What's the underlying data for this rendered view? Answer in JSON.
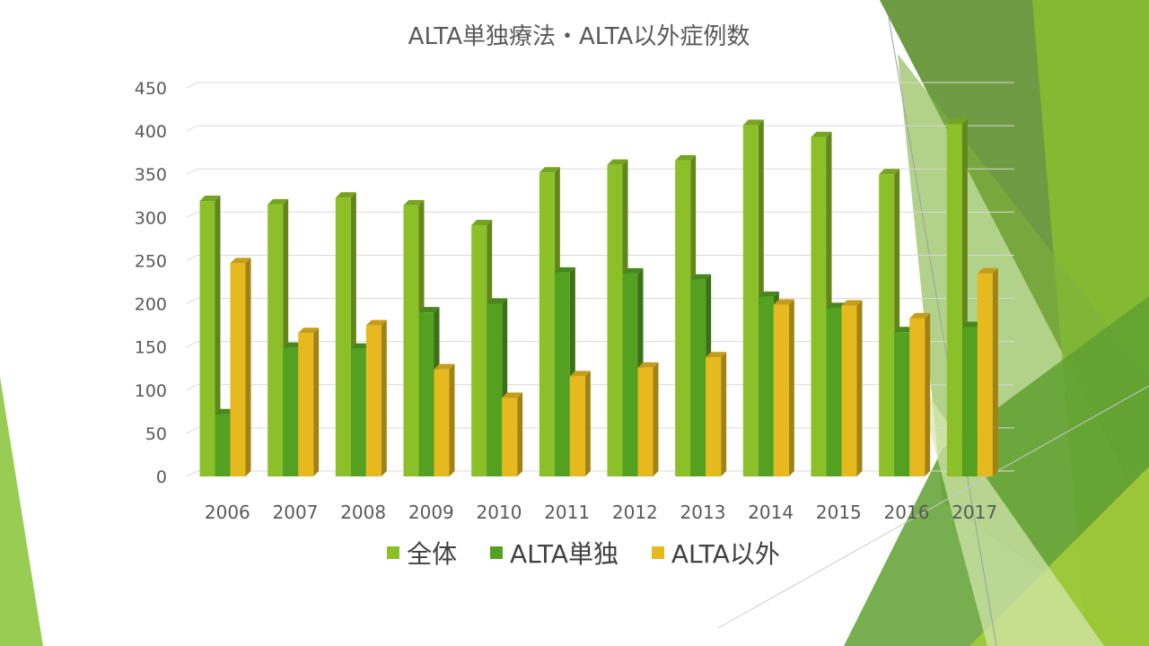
{
  "chart_data": {
    "type": "bar",
    "title": "ALTA単独療法・ALTA以外症例数",
    "categories": [
      "2006",
      "2007",
      "2008",
      "2009",
      "2010",
      "2011",
      "2012",
      "2013",
      "2014",
      "2015",
      "2016",
      "2017"
    ],
    "series": [
      {
        "name": "全体",
        "color": "#8CC028",
        "values": [
          319,
          315,
          323,
          314,
          291,
          352,
          361,
          366,
          407,
          393,
          350,
          408
        ]
      },
      {
        "name": "ALTA単独",
        "color": "#54A021",
        "values": [
          72,
          149,
          148,
          190,
          200,
          236,
          235,
          228,
          208,
          195,
          167,
          173
        ]
      },
      {
        "name": "ALTA以外",
        "color": "#E6B91E",
        "values": [
          247,
          166,
          175,
          124,
          91,
          116,
          126,
          138,
          199,
          198,
          183,
          235
        ]
      }
    ],
    "yticks": [
      0,
      50,
      100,
      150,
      200,
      250,
      300,
      350,
      400,
      450
    ],
    "ylim": [
      0,
      450
    ],
    "grid": true,
    "legend": "bottom"
  }
}
